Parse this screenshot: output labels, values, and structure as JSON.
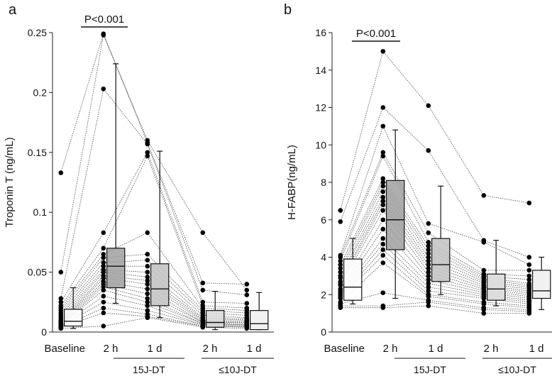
{
  "chart_data": [
    {
      "type": "box",
      "panel_label": "a",
      "ylabel": "Troponin T (ng/mL)",
      "ylim": [
        0,
        0.25
      ],
      "yticks": [
        0,
        0.05,
        0.1,
        0.15,
        0.2,
        0.25
      ],
      "ytick_labels": [
        "0",
        "0.05",
        "0.1",
        "0.15",
        "0.2",
        "0.25"
      ],
      "categories": [
        "Baseline",
        "2 h",
        "1 d",
        "2 h",
        "1 d"
      ],
      "groups": [
        {
          "label": "15J-DT",
          "categories": [
            1,
            2
          ]
        },
        {
          "label": "≤10J-DT",
          "categories": [
            3,
            4
          ]
        }
      ],
      "significance": {
        "text": "P<0.001",
        "between": [
          0,
          1
        ]
      },
      "box_fills": [
        "#ffffff",
        "#a0a0a0",
        "#c2c2c2",
        "#dcdcdc",
        "#eeeeee"
      ],
      "boxes": [
        {
          "min": 0.003,
          "q1": 0.005,
          "median": 0.009,
          "q3": 0.019,
          "max": 0.037
        },
        {
          "min": 0.024,
          "q1": 0.037,
          "median": 0.055,
          "q3": 0.07,
          "max": 0.224
        },
        {
          "min": 0.012,
          "q1": 0.022,
          "median": 0.036,
          "q3": 0.057,
          "max": 0.151
        },
        {
          "min": 0.002,
          "q1": 0.004,
          "median": 0.008,
          "q3": 0.018,
          "max": 0.034
        },
        {
          "min": 0.002,
          "q1": 0.002,
          "median": 0.007,
          "q3": 0.018,
          "max": 0.033
        }
      ],
      "dot_offset": -0.17,
      "points": [
        [
          0.133,
          0.249,
          0.158,
          0.041,
          0.04
        ],
        [
          0.05,
          0.248,
          0.16,
          0.083,
          0.035
        ],
        [
          0.028,
          0.203,
          0.157,
          0.035,
          0.031
        ],
        [
          0.025,
          0.083,
          0.15,
          0.025,
          0.024
        ],
        [
          0.022,
          0.07,
          0.147,
          0.022,
          0.02
        ],
        [
          0.02,
          0.065,
          0.083,
          0.02,
          0.018
        ],
        [
          0.018,
          0.062,
          0.065,
          0.018,
          0.016
        ],
        [
          0.016,
          0.058,
          0.06,
          0.016,
          0.014
        ],
        [
          0.014,
          0.055,
          0.055,
          0.014,
          0.012
        ],
        [
          0.012,
          0.052,
          0.05,
          0.012,
          0.011
        ],
        [
          0.01,
          0.05,
          0.046,
          0.011,
          0.01
        ],
        [
          0.009,
          0.047,
          0.043,
          0.01,
          0.009
        ],
        [
          0.008,
          0.045,
          0.04,
          0.009,
          0.008
        ],
        [
          0.008,
          0.042,
          0.036,
          0.008,
          0.008
        ],
        [
          0.007,
          0.04,
          0.032,
          0.008,
          0.007
        ],
        [
          0.006,
          0.038,
          0.028,
          0.007,
          0.006
        ],
        [
          0.006,
          0.035,
          0.025,
          0.007,
          0.006
        ],
        [
          0.005,
          0.03,
          0.022,
          0.006,
          0.005
        ],
        [
          0.005,
          0.025,
          0.018,
          0.006,
          0.005
        ],
        [
          0.004,
          0.02,
          0.015,
          0.005,
          0.004
        ],
        [
          0.004,
          0.016,
          0.013,
          0.005,
          0.004
        ],
        [
          0.003,
          0.005,
          0.012,
          0.004,
          0.003
        ]
      ]
    },
    {
      "type": "box",
      "panel_label": "b",
      "ylabel": "H-FABP(ng/mL)",
      "ylim": [
        0,
        16
      ],
      "yticks": [
        0,
        2,
        4,
        6,
        8,
        10,
        12,
        14,
        16
      ],
      "ytick_labels": [
        "0",
        "2",
        "4",
        "6",
        "8",
        "10",
        "12",
        "14",
        "16"
      ],
      "categories": [
        "Baseline",
        "2 h",
        "1 d",
        "2 h",
        "1 d"
      ],
      "groups": [
        {
          "label": "15J-DT",
          "categories": [
            1,
            2
          ]
        },
        {
          "label": "≤10J-DT",
          "categories": [
            3,
            4
          ]
        }
      ],
      "significance": {
        "text": "P<0.001",
        "between": [
          0,
          1
        ]
      },
      "box_fills": [
        "#ffffff",
        "#a0a0a0",
        "#c2c2c2",
        "#dcdcdc",
        "#eeeeee"
      ],
      "boxes": [
        {
          "min": 1.5,
          "q1": 1.7,
          "median": 2.4,
          "q3": 3.9,
          "max": 5.0
        },
        {
          "min": 1.8,
          "q1": 4.4,
          "median": 6.0,
          "q3": 8.1,
          "max": 10.8
        },
        {
          "min": 2.0,
          "q1": 2.7,
          "median": 3.6,
          "q3": 5.0,
          "max": 7.8
        },
        {
          "min": 1.4,
          "q1": 1.7,
          "median": 2.3,
          "q3": 3.1,
          "max": 4.9
        },
        {
          "min": 1.2,
          "q1": 1.8,
          "median": 2.2,
          "q3": 3.3,
          "max": 4.0
        }
      ],
      "dot_offset": -0.17,
      "points": [
        [
          6.5,
          15.0,
          12.1,
          7.3,
          6.9
        ],
        [
          5.9,
          12.0,
          9.7,
          4.9,
          4.0
        ],
        [
          4.1,
          11.0,
          5.8,
          4.8,
          3.6
        ],
        [
          4.0,
          9.6,
          5.3,
          3.3,
          3.3
        ],
        [
          3.8,
          9.4,
          4.8,
          3.1,
          3.0
        ],
        [
          3.6,
          8.2,
          4.6,
          3.0,
          2.8
        ],
        [
          3.4,
          8.0,
          4.4,
          2.9,
          2.6
        ],
        [
          3.2,
          7.8,
          4.2,
          2.8,
          2.5
        ],
        [
          3.0,
          7.5,
          4.0,
          2.7,
          2.4
        ],
        [
          2.9,
          7.2,
          3.8,
          2.6,
          2.3
        ],
        [
          2.7,
          7.0,
          3.6,
          2.5,
          2.2
        ],
        [
          2.6,
          6.8,
          3.4,
          2.4,
          2.1
        ],
        [
          2.5,
          6.5,
          3.2,
          2.3,
          2.0
        ],
        [
          2.3,
          6.0,
          3.0,
          2.2,
          1.9
        ],
        [
          2.2,
          5.5,
          2.8,
          2.1,
          1.8
        ],
        [
          2.1,
          5.0,
          2.6,
          2.0,
          1.7
        ],
        [
          2.0,
          4.7,
          2.4,
          1.9,
          1.6
        ],
        [
          1.9,
          4.4,
          2.2,
          1.8,
          1.5
        ],
        [
          1.8,
          4.1,
          2.0,
          1.6,
          1.4
        ],
        [
          1.6,
          3.7,
          1.9,
          1.5,
          1.3
        ],
        [
          1.5,
          2.1,
          1.7,
          1.3,
          1.2
        ],
        [
          1.4,
          1.4,
          1.6,
          1.2,
          1.1
        ],
        [
          1.3,
          1.3,
          1.4,
          1.0,
          1.0
        ]
      ]
    }
  ]
}
